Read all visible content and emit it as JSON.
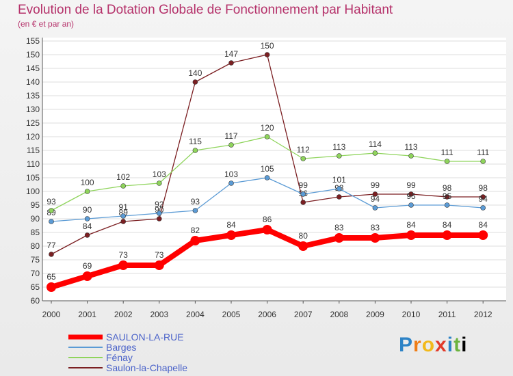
{
  "title": "Evolution de la Dotation Globale de Fonctionnement par Habitant",
  "subtitle": "(en € et par an)",
  "logo": {
    "text": [
      "P",
      "r",
      "o",
      "x",
      "i",
      "t",
      "i"
    ],
    "full": "Proxiti"
  },
  "chart_data": {
    "type": "line",
    "title": "Evolution de la Dotation Globale de Fonctionnement par Habitant",
    "ylabel": "(en € et par an)",
    "xlabel": "",
    "x": [
      "2000",
      "2001",
      "2002",
      "2003",
      "2004",
      "2005",
      "2006",
      "2007",
      "2008",
      "2009",
      "2010",
      "2011",
      "2012"
    ],
    "ylim": [
      60,
      155
    ],
    "yticks": [
      60,
      65,
      70,
      75,
      80,
      85,
      90,
      95,
      100,
      105,
      110,
      115,
      120,
      125,
      130,
      135,
      140,
      145,
      150,
      155
    ],
    "grid": "horizontal",
    "legend_position": "bottom-left",
    "series": [
      {
        "name": "SAULON-LA-RUE",
        "color": "#ff0000",
        "values": [
          65,
          69,
          73,
          73,
          82,
          84,
          86,
          80,
          83,
          83,
          84,
          84,
          84
        ]
      },
      {
        "name": "Barges",
        "color": "#5b9bd5",
        "values": [
          89,
          90,
          91,
          92,
          93,
          103,
          105,
          99,
          101,
          94,
          95,
          95,
          94
        ]
      },
      {
        "name": "Fénay",
        "color": "#8fd45c",
        "values": [
          93,
          100,
          102,
          103,
          115,
          117,
          120,
          112,
          113,
          114,
          113,
          111,
          111
        ]
      },
      {
        "name": "Saulon-la-Chapelle",
        "color": "#7b1f22",
        "values": [
          77,
          84,
          89,
          90,
          140,
          147,
          150,
          96,
          98,
          99,
          99,
          98,
          98
        ]
      }
    ]
  }
}
